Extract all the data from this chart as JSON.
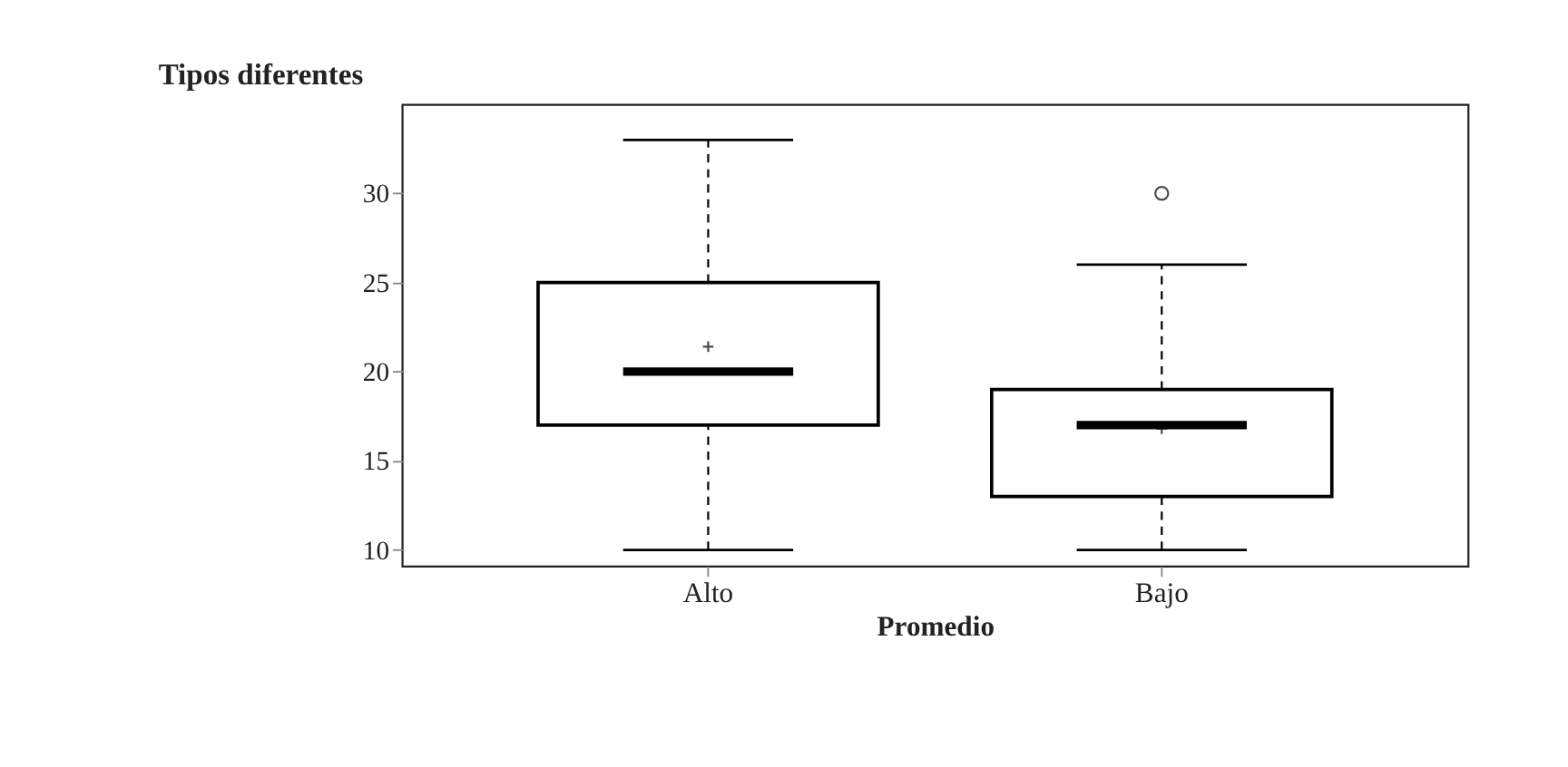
{
  "chart_data": {
    "type": "box",
    "title": "Tipos diferentes",
    "xlabel": "Promedio",
    "categories": [
      "Alto",
      "Bajo"
    ],
    "boxes": [
      {
        "low": 10,
        "q1": 17,
        "median": 20,
        "q3": 25,
        "high": 33,
        "mean": 21.4
      },
      {
        "low": 10,
        "q1": 13,
        "median": 17,
        "q3": 19,
        "high": 26,
        "mean": 16.8,
        "outliers": [
          30
        ]
      }
    ],
    "color": "#000000",
    "ylim": [
      9.1,
      35
    ],
    "yticks": [
      10,
      15,
      20,
      25,
      30
    ],
    "grid": false
  }
}
